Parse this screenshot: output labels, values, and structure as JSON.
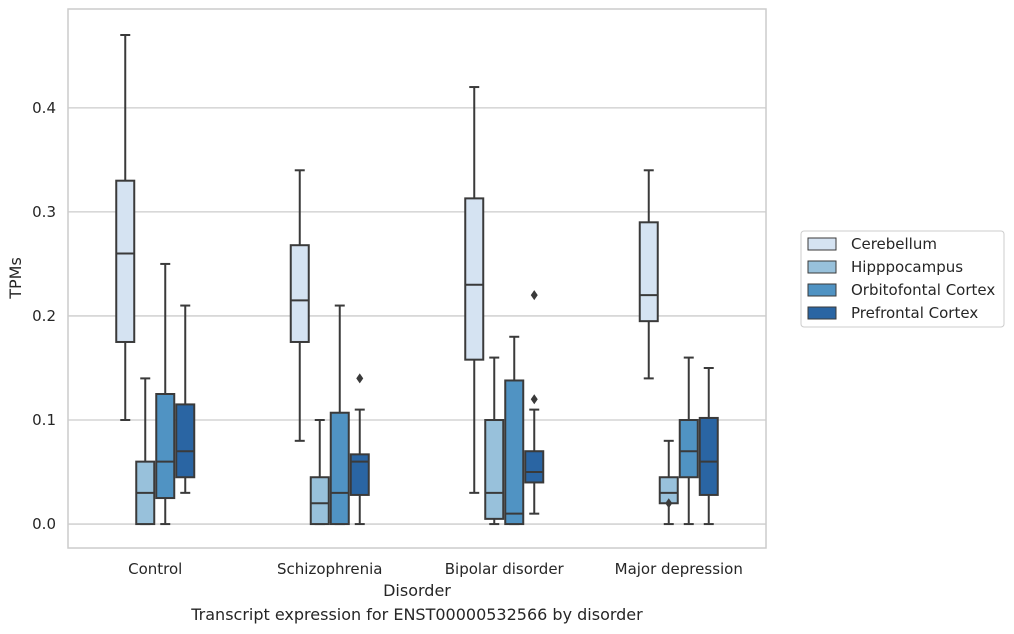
{
  "chart_data": {
    "type": "box",
    "title": "",
    "caption": "Transcript expression for ENST00000532566 by disorder",
    "xlabel": "Disorder",
    "ylabel": "TPMs",
    "ylim": [
      -0.023,
      0.495
    ],
    "yticks": [
      0.0,
      0.1,
      0.2,
      0.3,
      0.4
    ],
    "ytick_labels": [
      "0.0",
      "0.1",
      "0.2",
      "0.3",
      "0.4"
    ],
    "grid": "horizontal",
    "legend_position": "right",
    "categories": [
      "Control",
      "Schizophrenia",
      "Bipolar disorder",
      "Major depression"
    ],
    "series": [
      {
        "name": "Cerebellum",
        "color": "#d5e3f2",
        "boxes": [
          {
            "whisker_low": 0.1,
            "q1": 0.175,
            "median": 0.26,
            "q3": 0.33,
            "whisker_high": 0.47,
            "outliers": []
          },
          {
            "whisker_low": 0.08,
            "q1": 0.175,
            "median": 0.215,
            "q3": 0.268,
            "whisker_high": 0.34,
            "outliers": []
          },
          {
            "whisker_low": 0.03,
            "q1": 0.158,
            "median": 0.23,
            "q3": 0.313,
            "whisker_high": 0.42,
            "outliers": []
          },
          {
            "whisker_low": 0.14,
            "q1": 0.195,
            "median": 0.22,
            "q3": 0.29,
            "whisker_high": 0.34,
            "outliers": []
          }
        ]
      },
      {
        "name": "Hipppocampus",
        "color": "#98c1db",
        "boxes": [
          {
            "whisker_low": 0.0,
            "q1": 0.0,
            "median": 0.03,
            "q3": 0.06,
            "whisker_high": 0.14,
            "outliers": []
          },
          {
            "whisker_low": 0.0,
            "q1": 0.0,
            "median": 0.02,
            "q3": 0.045,
            "whisker_high": 0.1,
            "outliers": []
          },
          {
            "whisker_low": 0.0,
            "q1": 0.005,
            "median": 0.03,
            "q3": 0.1,
            "whisker_high": 0.16,
            "outliers": []
          },
          {
            "whisker_low": 0.0,
            "q1": 0.02,
            "median": 0.03,
            "q3": 0.045,
            "whisker_high": 0.08,
            "outliers": [
              0.02
            ]
          }
        ]
      },
      {
        "name": "Orbitofontal Cortex",
        "color": "#5093c3",
        "boxes": [
          {
            "whisker_low": 0.0,
            "q1": 0.025,
            "median": 0.06,
            "q3": 0.125,
            "whisker_high": 0.25,
            "outliers": []
          },
          {
            "whisker_low": 0.0,
            "q1": 0.0,
            "median": 0.03,
            "q3": 0.107,
            "whisker_high": 0.21,
            "outliers": []
          },
          {
            "whisker_low": 0.0,
            "q1": 0.0,
            "median": 0.01,
            "q3": 0.138,
            "whisker_high": 0.18,
            "outliers": []
          },
          {
            "whisker_low": 0.0,
            "q1": 0.045,
            "median": 0.07,
            "q3": 0.1,
            "whisker_high": 0.16,
            "outliers": []
          }
        ]
      },
      {
        "name": "Prefrontal Cortex",
        "color": "#2a65a3",
        "boxes": [
          {
            "whisker_low": 0.03,
            "q1": 0.045,
            "median": 0.07,
            "q3": 0.115,
            "whisker_high": 0.21,
            "outliers": []
          },
          {
            "whisker_low": 0.0,
            "q1": 0.028,
            "median": 0.06,
            "q3": 0.067,
            "whisker_high": 0.11,
            "outliers": [
              0.14
            ]
          },
          {
            "whisker_low": 0.01,
            "q1": 0.04,
            "median": 0.05,
            "q3": 0.07,
            "whisker_high": 0.11,
            "outliers": [
              0.12,
              0.22
            ]
          },
          {
            "whisker_low": 0.0,
            "q1": 0.028,
            "median": 0.06,
            "q3": 0.102,
            "whisker_high": 0.15,
            "outliers": []
          }
        ]
      }
    ]
  }
}
